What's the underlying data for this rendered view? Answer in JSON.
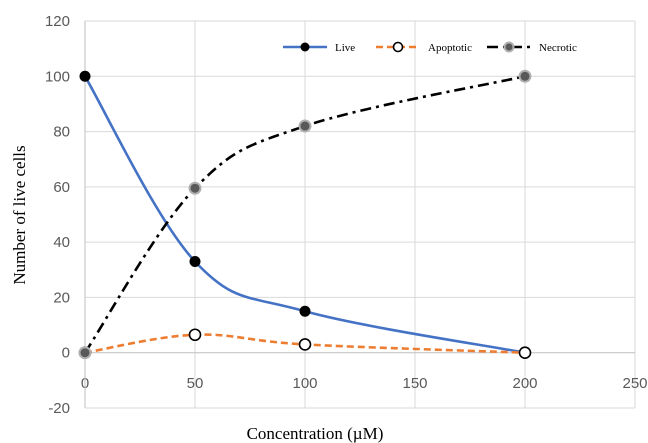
{
  "chart_data": {
    "type": "line",
    "title": "",
    "xlabel": "Concentration (µM)",
    "ylabel": "Number of live cells",
    "xlim": [
      0,
      250
    ],
    "ylim": [
      -20,
      120
    ],
    "x_ticks": [
      0,
      50,
      100,
      150,
      200,
      250
    ],
    "y_ticks": [
      -20,
      0,
      20,
      40,
      60,
      80,
      100,
      120
    ],
    "grid": "horizontal",
    "legend_position": "top-right",
    "x": [
      0,
      50,
      100,
      200
    ],
    "series": [
      {
        "name": "Live",
        "values": [
          100,
          33,
          15,
          0
        ],
        "color": "#4472C4",
        "line_style": "solid",
        "marker": "filled-black-circle"
      },
      {
        "name": "Apoptotic",
        "values": [
          0,
          6.5,
          3,
          0
        ],
        "color": "#ED7D31",
        "line_style": "dashed",
        "marker": "open-circle"
      },
      {
        "name": "Necrotic",
        "values": [
          0,
          59.5,
          82,
          100
        ],
        "color": "#000000",
        "line_style": "dash-dot",
        "marker": "grey-filled-circle"
      }
    ]
  }
}
